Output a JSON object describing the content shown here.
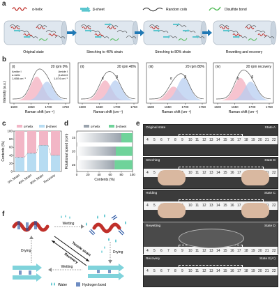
{
  "panel_labels": {
    "a": "a",
    "b": "b",
    "c": "c",
    "d": "d",
    "e": "e",
    "f": "f"
  },
  "legend_a": [
    {
      "label": "α-helix",
      "color": "#c0302a"
    },
    {
      "label": "β-sheet",
      "color": "#5bc6cf"
    },
    {
      "label": "Random coils",
      "color": "#222222"
    },
    {
      "label": "Disulfide bond",
      "color": "#43b649"
    }
  ],
  "stages_a": [
    "Original state",
    "Streching to 40% strain",
    "Streching to 80% strain",
    "Rewetting and recovery"
  ],
  "panel_b": {
    "ylabel": "Intensity (a.u.)",
    "xlabel": "Raman shift (cm⁻¹)",
    "ticks": [
      "1600",
      "1650",
      "1700",
      "1750"
    ],
    "subplots": [
      {
        "roman": "(i)",
        "title": "20 rpm",
        "cond": "0%",
        "annot_left": "Amide I\nα-helix\n1,658 cm⁻¹",
        "annot_right": "Amide I\nβ-sheet\n1,674 cm⁻¹"
      },
      {
        "roman": "(ii)",
        "title": "20 rpm",
        "cond": "40%",
        "annot_left": "α",
        "annot_right": "β"
      },
      {
        "roman": "(iii)",
        "title": "20 rpm",
        "cond": "80%",
        "annot_left": "α",
        "annot_right": "β"
      },
      {
        "roman": "(iv)",
        "title": "20 rpm",
        "cond": "recovery",
        "annot_left": "α",
        "annot_right": "β"
      }
    ]
  },
  "chart_data": [
    {
      "type": "bar",
      "panel": "c",
      "categories": [
        "0% Strain",
        "40% Strain",
        "80% Strain",
        "Recovery"
      ],
      "series": [
        {
          "name": "α-helix",
          "values": [
            65,
            55,
            35,
            60
          ],
          "color": "#f2b6c6"
        },
        {
          "name": "β-sheet",
          "values": [
            35,
            45,
            65,
            40
          ],
          "color": "#b7dcf2"
        }
      ],
      "ylabel": "Contents (%)",
      "yticks": [
        "0",
        "20",
        "40",
        "60",
        "80",
        "100"
      ],
      "ylim": [
        0,
        100
      ]
    },
    {
      "type": "bar",
      "panel": "d",
      "orientation": "horizontal",
      "categories": [
        "15",
        "20",
        "25"
      ],
      "series": [
        {
          "name": "α-helix",
          "values": [
            80,
            70,
            68
          ],
          "color": "#9aa3ad"
        },
        {
          "name": "β-sheet",
          "values": [
            20,
            30,
            32
          ],
          "color": "#6fd39a"
        }
      ],
      "xlabel": "Contents (%)",
      "ylabel": "Rotational speed (rpm)",
      "xticks": [
        "0",
        "20",
        "40",
        "60",
        "80",
        "100"
      ],
      "xlim": [
        0,
        100
      ]
    }
  ],
  "panel_e": {
    "states": [
      {
        "left": "Original state",
        "right": "State A"
      },
      {
        "left": "Streching",
        "right": "State B"
      },
      {
        "left": "Holding",
        "right": "State C"
      },
      {
        "left": "Rewetting",
        "right": "State D"
      },
      {
        "left": "Recovery",
        "right": "State E(A')"
      }
    ],
    "ruler_numbers": [
      "4",
      "5",
      "6",
      "7",
      "8",
      "9",
      "10",
      "11",
      "12",
      "13",
      "14",
      "15",
      "16",
      "17",
      "18",
      "19",
      "20",
      "21",
      "22"
    ]
  },
  "panel_f": {
    "arrows": {
      "wetting_top": "Wetting",
      "wetting_bottom": "Wetting",
      "drying_left": "Drying",
      "drying_right": "Drying",
      "tensile": "Tensile strain",
      "recovery": "Recovery"
    },
    "legend": [
      {
        "label": "Water"
      },
      {
        "label": "Hydrogen bond"
      }
    ]
  }
}
